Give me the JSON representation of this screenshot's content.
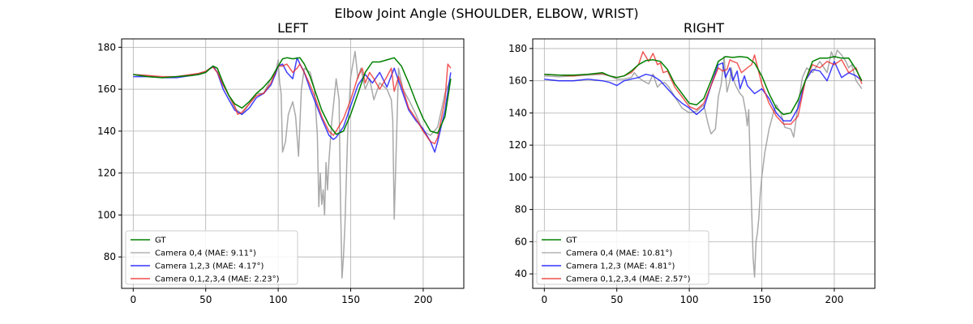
{
  "figure_title": "Elbow Joint Angle (SHOULDER, ELBOW, WRIST)",
  "chart_data": [
    {
      "type": "line",
      "title": "LEFT",
      "xlabel": "",
      "ylabel": "",
      "xlim": [
        -8,
        228
      ],
      "ylim": [
        65,
        184
      ],
      "xticks": [
        0,
        50,
        100,
        150,
        200
      ],
      "yticks": [
        80,
        100,
        120,
        140,
        160,
        180
      ],
      "grid": true,
      "legend_position": "lower-left",
      "series": [
        {
          "name": "GT",
          "color": "#008000",
          "x": [
            0,
            10,
            20,
            30,
            40,
            45,
            50,
            55,
            58,
            62,
            66,
            70,
            75,
            80,
            85,
            90,
            95,
            100,
            103,
            106,
            110,
            115,
            118,
            122,
            126,
            130,
            135,
            140,
            145,
            150,
            155,
            160,
            165,
            170,
            175,
            180,
            185,
            190,
            195,
            200,
            205,
            210,
            215,
            219
          ],
          "y": [
            167,
            166,
            165.5,
            166,
            166.5,
            167,
            168,
            171,
            170,
            163,
            157,
            153,
            151,
            154,
            158,
            161,
            165,
            171,
            174.5,
            175,
            174.5,
            175,
            172,
            166,
            158,
            150,
            143,
            138.5,
            140,
            148,
            158,
            168,
            173,
            173,
            174,
            175,
            171,
            163,
            154,
            146,
            140,
            139,
            147,
            165
          ]
        },
        {
          "name": "Camera 0,4 (MAE: 9.11°)",
          "color": "#a0a0a0",
          "x": [
            0,
            10,
            20,
            30,
            40,
            45,
            50,
            55,
            58,
            62,
            66,
            70,
            75,
            80,
            85,
            90,
            95,
            98,
            100,
            101,
            102,
            103,
            105,
            107,
            110,
            112,
            114,
            116,
            118,
            122,
            125,
            127,
            128,
            129,
            130,
            131,
            132,
            133,
            134,
            135,
            137,
            140,
            142,
            143,
            144,
            145,
            146,
            148,
            150,
            153,
            155,
            157,
            160,
            163,
            166,
            170,
            175,
            178,
            179,
            180,
            183,
            186,
            190,
            195,
            200,
            205,
            210,
            215,
            219
          ],
          "y": [
            167,
            166.5,
            165.5,
            166,
            167,
            167.5,
            168.5,
            170.5,
            170,
            162,
            157,
            151,
            148,
            153,
            158,
            158,
            165,
            167,
            174,
            163,
            158,
            130,
            135,
            148,
            154,
            147,
            128,
            160,
            170,
            168,
            160,
            138,
            104,
            120,
            105,
            112,
            100,
            125,
            112,
            126,
            145,
            165,
            155,
            105,
            70,
            80,
            95,
            140,
            166,
            178,
            165,
            170,
            160,
            165,
            155,
            163,
            160,
            155,
            145,
            98,
            170,
            160,
            155,
            148,
            140,
            138,
            142,
            158,
            165
          ]
        },
        {
          "name": "Camera 1,2,3 (MAE: 4.17°)",
          "color": "#0000ff",
          "x": [
            0,
            10,
            20,
            30,
            40,
            45,
            50,
            53,
            55,
            58,
            62,
            66,
            70,
            75,
            80,
            85,
            90,
            95,
            98,
            100,
            103,
            106,
            110,
            113,
            115,
            118,
            122,
            126,
            130,
            135,
            138,
            140,
            145,
            150,
            155,
            160,
            165,
            170,
            175,
            180,
            185,
            190,
            195,
            200,
            205,
            208,
            210,
            215,
            219
          ],
          "y": [
            166,
            166,
            165.5,
            165.5,
            166.5,
            167,
            168,
            170,
            171,
            168,
            160,
            155,
            150,
            148,
            151,
            156,
            158,
            162,
            167,
            171,
            172,
            168,
            165,
            175,
            172,
            168,
            160,
            153,
            146,
            138,
            136,
            137,
            142,
            152,
            162,
            167,
            163,
            168,
            161,
            170,
            160,
            150,
            145,
            141,
            135,
            130,
            135,
            150,
            168
          ]
        },
        {
          "name": "Camera 0,1,2,3,4 (MAE: 2.23°)",
          "color": "#ee2222",
          "x": [
            0,
            10,
            20,
            30,
            40,
            45,
            50,
            53,
            55,
            58,
            62,
            66,
            70,
            72,
            75,
            80,
            85,
            90,
            95,
            98,
            100,
            103,
            106,
            110,
            113,
            115,
            118,
            122,
            126,
            130,
            135,
            138,
            140,
            145,
            150,
            155,
            158,
            160,
            163,
            166,
            170,
            175,
            178,
            180,
            183,
            186,
            190,
            195,
            200,
            205,
            208,
            210,
            215,
            217,
            219
          ],
          "y": [
            167,
            166.5,
            166,
            166,
            167,
            167.5,
            168.5,
            170,
            170.5,
            168,
            162,
            157,
            152,
            148,
            149,
            153,
            157,
            158,
            163,
            168,
            171,
            171,
            172,
            168,
            170,
            172,
            168,
            162,
            155,
            147,
            140,
            138,
            140,
            146,
            155,
            166,
            170,
            163,
            168,
            165,
            160,
            166,
            170,
            159,
            166,
            160,
            151,
            146,
            140,
            135,
            134,
            137,
            155,
            172,
            170
          ]
        }
      ]
    },
    {
      "type": "line",
      "title": "RIGHT",
      "xlabel": "",
      "ylabel": "",
      "xlim": [
        -8,
        228
      ],
      "ylim": [
        31,
        186
      ],
      "xticks": [
        0,
        50,
        100,
        150,
        200
      ],
      "yticks": [
        40,
        60,
        80,
        100,
        120,
        140,
        160,
        180
      ],
      "grid": true,
      "legend_position": "lower-left",
      "series": [
        {
          "name": "GT",
          "color": "#008000",
          "x": [
            0,
            10,
            20,
            30,
            40,
            45,
            50,
            55,
            60,
            65,
            70,
            75,
            80,
            85,
            90,
            95,
            100,
            105,
            110,
            115,
            120,
            125,
            130,
            135,
            140,
            145,
            150,
            155,
            160,
            165,
            170,
            175,
            180,
            185,
            190,
            195,
            200,
            205,
            210,
            215,
            219
          ],
          "y": [
            164,
            163.5,
            163.5,
            164,
            165,
            163,
            162,
            163,
            166,
            170,
            172.5,
            173,
            172,
            167,
            158,
            152,
            146,
            145,
            149,
            160,
            172,
            175,
            174.5,
            175,
            174.5,
            171,
            163,
            152,
            143,
            139,
            140,
            148,
            160,
            172,
            174,
            174,
            175,
            174,
            174,
            167,
            160
          ]
        },
        {
          "name": "Camera 0,4 (MAE: 10.81°)",
          "color": "#a0a0a0",
          "x": [
            0,
            10,
            20,
            30,
            40,
            45,
            50,
            55,
            60,
            62,
            65,
            68,
            72,
            75,
            78,
            80,
            83,
            86,
            90,
            95,
            100,
            105,
            110,
            113,
            115,
            118,
            120,
            122,
            124,
            126,
            128,
            129,
            130,
            132,
            135,
            137,
            139,
            140,
            141,
            142,
            143,
            144,
            145,
            146,
            147,
            148,
            149,
            150,
            152,
            155,
            158,
            160,
            163,
            166,
            170,
            172,
            175,
            178,
            181,
            185,
            190,
            195,
            198,
            200,
            202,
            205,
            208,
            210,
            212,
            215,
            219
          ],
          "y": [
            163,
            162.5,
            163,
            163.5,
            164,
            163,
            161,
            161,
            162,
            165,
            162,
            160,
            158,
            164,
            156,
            158,
            159,
            156,
            150,
            143,
            140,
            141,
            145,
            133,
            127,
            130,
            150,
            158,
            175,
            153,
            160,
            168,
            162,
            157,
            152,
            150,
            140,
            132,
            142,
            110,
            80,
            50,
            38,
            60,
            66,
            75,
            90,
            100,
            115,
            130,
            140,
            145,
            140,
            131,
            130,
            125,
            145,
            162,
            168,
            165,
            172,
            165,
            178,
            173,
            179,
            176,
            172,
            168,
            170,
            160,
            155
          ]
        },
        {
          "name": "Camera 1,2,3 (MAE: 4.81°)",
          "color": "#0000ff",
          "x": [
            0,
            10,
            20,
            30,
            40,
            45,
            50,
            55,
            60,
            65,
            70,
            75,
            80,
            85,
            90,
            95,
            100,
            105,
            110,
            115,
            120,
            123,
            125,
            128,
            130,
            133,
            135,
            138,
            140,
            145,
            150,
            155,
            160,
            165,
            170,
            175,
            180,
            185,
            190,
            195,
            200,
            205,
            210,
            215,
            219
          ],
          "y": [
            161,
            160,
            160,
            161,
            160,
            159,
            157,
            160,
            161,
            162,
            164,
            163,
            160,
            155,
            150,
            146,
            143,
            139,
            143,
            157,
            170,
            171,
            162,
            168,
            160,
            166,
            155,
            163,
            157,
            152,
            155,
            149,
            140,
            135,
            135,
            143,
            160,
            167,
            166,
            160,
            172,
            162,
            165,
            163,
            160
          ]
        },
        {
          "name": "Camera 0,1,2,3,4 (MAE: 2.57°)",
          "color": "#ee2222",
          "x": [
            0,
            10,
            20,
            30,
            40,
            45,
            50,
            55,
            60,
            65,
            68,
            70,
            72,
            75,
            78,
            80,
            82,
            85,
            90,
            95,
            100,
            105,
            110,
            115,
            120,
            123,
            126,
            128,
            130,
            133,
            136,
            140,
            143,
            145,
            150,
            155,
            160,
            165,
            170,
            175,
            180,
            185,
            190,
            195,
            200,
            205,
            210,
            215,
            219
          ],
          "y": [
            164,
            163.5,
            163,
            164,
            164.5,
            163,
            162,
            163,
            165,
            170,
            178,
            175,
            172,
            177,
            170,
            171,
            165,
            166,
            156,
            150,
            144,
            142,
            146,
            157,
            168,
            166,
            167,
            173,
            172,
            171,
            165,
            168,
            170,
            176,
            158,
            146,
            138,
            133,
            133,
            138,
            160,
            170,
            168,
            172,
            170,
            173,
            165,
            168,
            158
          ]
        }
      ]
    }
  ]
}
